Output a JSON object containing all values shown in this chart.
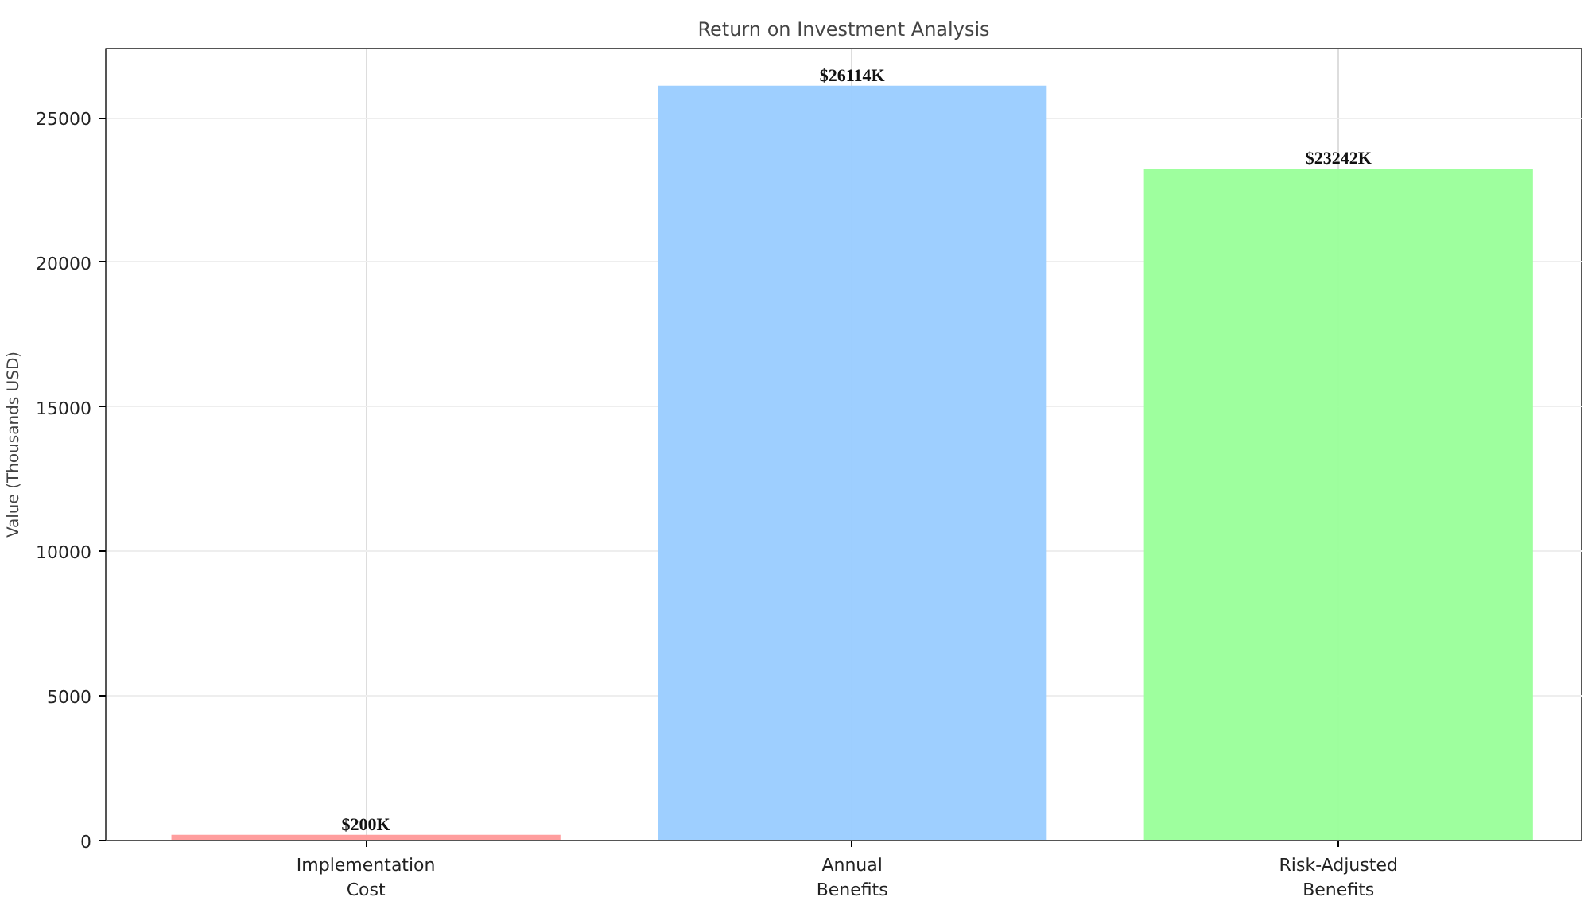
{
  "chart_data": {
    "type": "bar",
    "title": "Return on Investment Analysis",
    "ylabel": "Value (Thousands USD)",
    "categories": [
      "Implementation\nCost",
      "Annual\nBenefits",
      "Risk-Adjusted\nBenefits"
    ],
    "values": [
      200,
      26114,
      23242
    ],
    "colors": [
      "#ff9999",
      "#99ccff",
      "#99ff99"
    ],
    "value_labels": [
      "$200K",
      "$26114K",
      "$23242K"
    ],
    "ylim": [
      0,
      27400
    ],
    "yticks": [
      0,
      5000,
      10000,
      15000,
      20000,
      25000
    ],
    "grid": true
  }
}
